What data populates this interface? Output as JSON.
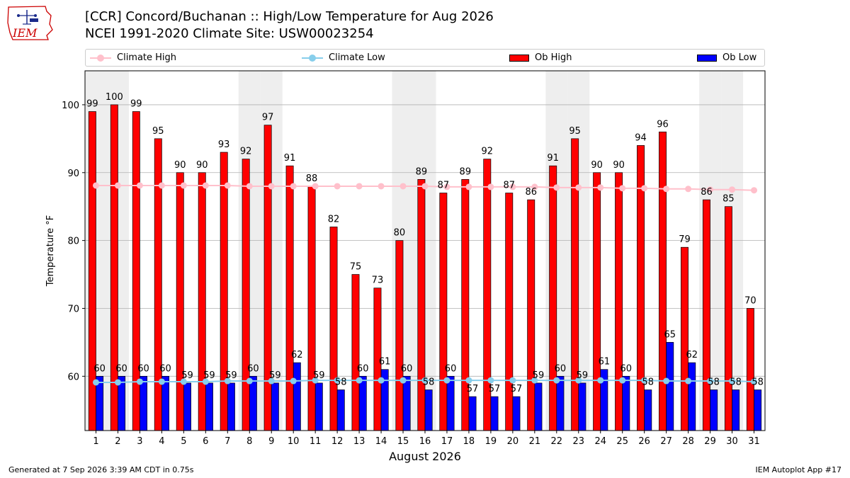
{
  "header": {
    "title_line1": "[CCR] Concord/Buchanan :: High/Low Temperature for Aug 2026",
    "title_line2": "NCEI 1991-2020 Climate Site: USW00023254",
    "logo_text": "IEM"
  },
  "footer": {
    "left": "Generated at 7 Sep 2026 3:39 AM CDT in 0.75s",
    "right": "IEM Autoplot App #17"
  },
  "colors": {
    "ob_high": "#ff0000",
    "ob_low": "#0000ff",
    "climate_high": "#ffc0cb",
    "climate_low": "#87ceeb",
    "weekend_band": "#eeeeee"
  },
  "chart_data": {
    "type": "bar",
    "title": "[CCR] Concord/Buchanan :: High/Low Temperature for Aug 2026",
    "xlabel": "August 2026",
    "ylabel": "Temperature °F",
    "ylim": [
      52,
      105
    ],
    "yticks": [
      60,
      70,
      80,
      90,
      100
    ],
    "grid": "horizontal",
    "legend_position": "top",
    "weekend_days": [
      1,
      2,
      8,
      9,
      15,
      16,
      22,
      23,
      29,
      30
    ],
    "categories": [
      1,
      2,
      3,
      4,
      5,
      6,
      7,
      8,
      9,
      10,
      11,
      12,
      13,
      14,
      15,
      16,
      17,
      18,
      19,
      20,
      21,
      22,
      23,
      24,
      25,
      26,
      27,
      28,
      29,
      30,
      31
    ],
    "series": [
      {
        "name": "Ob High",
        "kind": "bar",
        "values": [
          99,
          100,
          99,
          95,
          90,
          90,
          93,
          92,
          97,
          91,
          88,
          82,
          75,
          73,
          80,
          89,
          87,
          89,
          92,
          87,
          86,
          91,
          95,
          90,
          90,
          94,
          96,
          79,
          86,
          85,
          70
        ]
      },
      {
        "name": "Ob Low",
        "kind": "bar",
        "values": [
          60,
          60,
          60,
          60,
          59,
          59,
          59,
          60,
          59,
          62,
          59,
          58,
          60,
          61,
          60,
          58,
          60,
          57,
          57,
          57,
          59,
          60,
          59,
          61,
          60,
          58,
          65,
          62,
          58,
          58,
          58
        ]
      },
      {
        "name": "Climate High",
        "kind": "line",
        "values": [
          88.1,
          88.1,
          88.1,
          88.1,
          88.1,
          88.1,
          88.1,
          88.0,
          88.0,
          88.0,
          88.0,
          88.0,
          88.0,
          88.0,
          88.0,
          88.0,
          87.9,
          87.9,
          87.9,
          87.9,
          87.9,
          87.8,
          87.8,
          87.8,
          87.7,
          87.7,
          87.6,
          87.6,
          87.5,
          87.5,
          87.4
        ]
      },
      {
        "name": "Climate Low",
        "kind": "line",
        "values": [
          59.1,
          59.1,
          59.2,
          59.2,
          59.2,
          59.2,
          59.3,
          59.3,
          59.3,
          59.3,
          59.4,
          59.4,
          59.4,
          59.4,
          59.4,
          59.4,
          59.4,
          59.4,
          59.4,
          59.4,
          59.4,
          59.4,
          59.4,
          59.4,
          59.4,
          59.4,
          59.3,
          59.3,
          59.3,
          59.3,
          59.2
        ]
      }
    ]
  }
}
